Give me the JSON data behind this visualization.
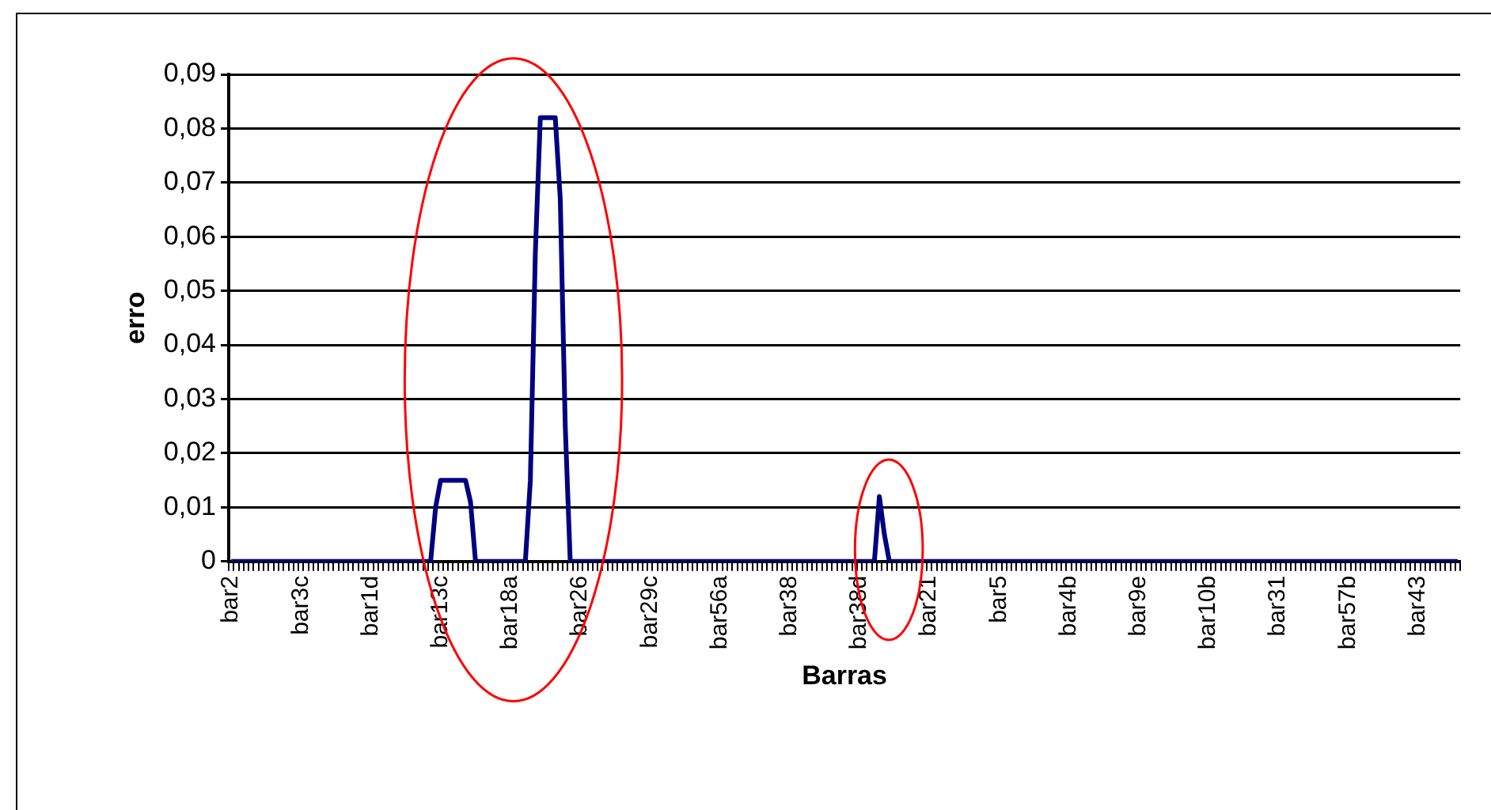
{
  "chart_data": {
    "type": "line",
    "xlabel": "Barras",
    "ylabel": "erro",
    "categories": [
      "bar2",
      null,
      null,
      null,
      null,
      null,
      null,
      null,
      null,
      null,
      null,
      null,
      null,
      null,
      "bar3c",
      null,
      null,
      null,
      null,
      null,
      null,
      null,
      null,
      null,
      null,
      null,
      null,
      null,
      "bar1d",
      null,
      null,
      null,
      null,
      null,
      null,
      null,
      null,
      null,
      null,
      null,
      null,
      null,
      "bar13c",
      null,
      null,
      null,
      null,
      null,
      null,
      null,
      null,
      null,
      null,
      null,
      null,
      null,
      "bar18a",
      null,
      null,
      null,
      null,
      null,
      null,
      null,
      null,
      null,
      null,
      null,
      null,
      null,
      "bar26",
      null,
      null,
      null,
      null,
      null,
      null,
      null,
      null,
      null,
      null,
      null,
      null,
      null,
      "bar29c",
      null,
      null,
      null,
      null,
      null,
      null,
      null,
      null,
      null,
      null,
      null,
      null,
      null,
      "bar56a",
      null,
      null,
      null,
      null,
      null,
      null,
      null,
      null,
      null,
      null,
      null,
      null,
      null,
      "bar38",
      null,
      null,
      null,
      null,
      null,
      null,
      null,
      null,
      null,
      null,
      null,
      null,
      null,
      "bar38d",
      null,
      null,
      null,
      null,
      null,
      null,
      null,
      null,
      null,
      null,
      null,
      null,
      null,
      "bar21",
      null,
      null,
      null,
      null,
      null,
      null,
      null,
      null,
      null,
      null,
      null,
      null,
      null,
      "bar5",
      null,
      null,
      null,
      null,
      null,
      null,
      null,
      null,
      null,
      null,
      null,
      null,
      null,
      "bar4b",
      null,
      null,
      null,
      null,
      null,
      null,
      null,
      null,
      null,
      null,
      null,
      null,
      null,
      "bar9e",
      null,
      null,
      null,
      null,
      null,
      null,
      null,
      null,
      null,
      null,
      null,
      null,
      null,
      "bar10b",
      null,
      null,
      null,
      null,
      null,
      null,
      null,
      null,
      null,
      null,
      null,
      null,
      null,
      "bar31",
      null,
      null,
      null,
      null,
      null,
      null,
      null,
      null,
      null,
      null,
      null,
      null,
      null,
      "bar57b",
      null,
      null,
      null,
      null,
      null,
      null,
      null,
      null,
      null,
      null,
      null,
      null,
      null,
      "bar43",
      null,
      null,
      null,
      null,
      null,
      null,
      null,
      null
    ],
    "series": [
      {
        "color": "#000080",
        "values": [
          0,
          0,
          0,
          0,
          0,
          0,
          0,
          0,
          0,
          0,
          0,
          0,
          0,
          0,
          0,
          0,
          0,
          0,
          0,
          0,
          0,
          0,
          0,
          0,
          0,
          0,
          0,
          0,
          0,
          0,
          0,
          0,
          0,
          0,
          0,
          0,
          0,
          0,
          0,
          0,
          0,
          0.01,
          0.015,
          0.015,
          0.015,
          0.015,
          0.015,
          0.015,
          0.011,
          0,
          0,
          0,
          0,
          0,
          0,
          0,
          0,
          0,
          0,
          0,
          0.015,
          0.057,
          0.082,
          0.082,
          0.082,
          0.082,
          0.067,
          0.025,
          0,
          0,
          0,
          0,
          0,
          0,
          0,
          0,
          0,
          0,
          0,
          0,
          0,
          0,
          0,
          0,
          0,
          0,
          0,
          0,
          0,
          0,
          0,
          0,
          0,
          0,
          0,
          0,
          0,
          0,
          0,
          0,
          0,
          0,
          0,
          0,
          0,
          0,
          0,
          0,
          0,
          0,
          0,
          0,
          0,
          0,
          0,
          0,
          0,
          0,
          0,
          0,
          0,
          0,
          0,
          0,
          0,
          0,
          0,
          0,
          0,
          0,
          0.012,
          0.005,
          0,
          0,
          0,
          0,
          0,
          0,
          0,
          0,
          0,
          0,
          0,
          0,
          0,
          0,
          0,
          0,
          0,
          0,
          0,
          0,
          0,
          0,
          0,
          0,
          0,
          0,
          0,
          0,
          0,
          0,
          0,
          0,
          0,
          0,
          0,
          0,
          0,
          0,
          0,
          0,
          0,
          0,
          0,
          0,
          0,
          0,
          0,
          0,
          0,
          0,
          0,
          0,
          0,
          0,
          0,
          0,
          0,
          0,
          0,
          0,
          0,
          0,
          0,
          0,
          0,
          0,
          0,
          0,
          0,
          0,
          0,
          0,
          0,
          0,
          0,
          0,
          0,
          0,
          0,
          0,
          0,
          0,
          0,
          0,
          0,
          0,
          0,
          0,
          0,
          0,
          0,
          0,
          0,
          0,
          0,
          0,
          0,
          0,
          0,
          0,
          0,
          0,
          0,
          0,
          0,
          0,
          0,
          0,
          0,
          0,
          0,
          0,
          0,
          0,
          0
        ]
      }
    ],
    "ylim": [
      0,
      0.09
    ],
    "yticks": [
      0,
      {
        "value": 0.01,
        "label": "0,01"
      },
      {
        "value": 0.02,
        "label": "0,02"
      },
      {
        "value": 0.03,
        "label": "0,03"
      },
      {
        "value": 0.04,
        "label": "0,04"
      },
      {
        "value": 0.05,
        "label": "0,05"
      },
      {
        "value": 0.06,
        "label": "0,06"
      },
      {
        "value": 0.07,
        "label": "0,07"
      },
      {
        "value": 0.08,
        "label": "0,08"
      },
      {
        "value": 0.09,
        "label": "0,09"
      }
    ],
    "grid": "y",
    "legend": false,
    "marker": "none",
    "line_style": "solid"
  }
}
